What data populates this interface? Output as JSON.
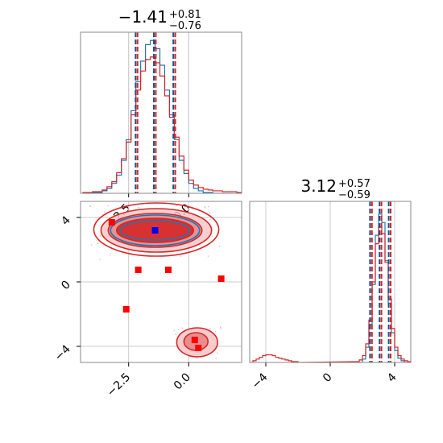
{
  "chart_data": [
    {
      "type": "histogram",
      "panel": "top-left",
      "title": {
        "value": "−1.41",
        "plus": "+0.81",
        "minus": "−0.76"
      },
      "xlim": [
        -4.5,
        2.2
      ],
      "grid": true,
      "x_ticks": [
        -2.5,
        0.0
      ],
      "quantiles": [
        -2.17,
        -1.41,
        -0.6
      ],
      "series": [
        {
          "color": "#1f77b4",
          "x": [
            -4.4,
            -4.2,
            -4.0,
            -3.8,
            -3.6,
            -3.4,
            -3.2,
            -3.0,
            -2.8,
            -2.6,
            -2.4,
            -2.2,
            -2.0,
            -1.8,
            -1.6,
            -1.4,
            -1.2,
            -1.0,
            -0.8,
            -0.6,
            -0.4,
            -0.2,
            0.0,
            0.2,
            0.4,
            0.6,
            0.8,
            1.0,
            1.2,
            1.4,
            1.6,
            1.8,
            2.0
          ],
          "y": [
            0,
            0,
            1,
            1,
            3,
            6,
            12,
            22,
            40,
            65,
            100,
            135,
            160,
            180,
            185,
            175,
            155,
            125,
            95,
            65,
            40,
            24,
            12,
            6,
            3,
            1,
            1,
            0,
            0,
            0,
            0,
            0,
            0
          ]
        },
        {
          "color": "#d62728",
          "x": [
            -4.4,
            -4.2,
            -4.0,
            -3.8,
            -3.6,
            -3.4,
            -3.2,
            -3.0,
            -2.8,
            -2.6,
            -2.4,
            -2.2,
            -2.0,
            -1.8,
            -1.6,
            -1.4,
            -1.2,
            -1.0,
            -0.8,
            -0.6,
            -0.4,
            -0.2,
            0.0,
            0.2,
            0.4,
            0.6,
            0.8,
            1.0,
            1.2,
            1.4,
            1.6,
            1.8,
            2.0
          ],
          "y": [
            1,
            1,
            2,
            2,
            4,
            8,
            14,
            25,
            42,
            62,
            95,
            125,
            148,
            162,
            165,
            158,
            142,
            118,
            92,
            68,
            45,
            28,
            16,
            10,
            7,
            5,
            4,
            3,
            3,
            2,
            2,
            2,
            1
          ]
        }
      ]
    },
    {
      "type": "scatter",
      "panel": "bottom-left",
      "xlim": [
        -4.5,
        2.2
      ],
      "ylim": [
        -5.0,
        5.0
      ],
      "grid": true,
      "x_ticks": [
        -2.5,
        0.0
      ],
      "y_ticks": [
        -4,
        0,
        4
      ],
      "markers": [
        {
          "name": "blue square",
          "color": "#0000ff",
          "x": -1.4,
          "y": 3.2
        },
        {
          "name": "red square",
          "color": "#ff0000",
          "x": -3.2,
          "y": 3.7
        },
        {
          "name": "red square",
          "color": "#ff0000",
          "x": -2.1,
          "y": 0.75
        },
        {
          "name": "red square",
          "color": "#ff0000",
          "x": -0.85,
          "y": 0.75
        },
        {
          "name": "red square",
          "color": "#ff0000",
          "x": 1.35,
          "y": 0.2
        },
        {
          "name": "red square",
          "color": "#ff0000",
          "x": -2.6,
          "y": -1.7
        },
        {
          "name": "red square",
          "color": "#ff0000",
          "x": 0.25,
          "y": -3.6
        },
        {
          "name": "red square",
          "color": "#ff0000",
          "x": 0.4,
          "y": -4.1
        }
      ],
      "contours": [
        {
          "color": "#d62728",
          "center": [
            -1.4,
            3.2
          ],
          "extent": [
            1.6,
            0.75
          ],
          "fill": "#d62728",
          "opacity": 0.9
        },
        {
          "color": "#d62728",
          "center": [
            -1.4,
            3.2
          ],
          "extent": [
            1.95,
            1.05
          ],
          "fill": "#e88a8a",
          "opacity": 0.9
        },
        {
          "color": "#d62728",
          "center": [
            -1.35,
            3.2
          ],
          "extent": [
            2.3,
            1.35
          ],
          "fill": "#f4c4c4",
          "opacity": 0.8
        },
        {
          "color": "#d62728",
          "center": [
            -1.35,
            3.25
          ],
          "extent": [
            2.6,
            1.65
          ],
          "fill": "none",
          "opacity": 1
        },
        {
          "color": "#1f77b4",
          "center": [
            -1.4,
            3.2
          ],
          "extent": [
            1.45,
            0.6
          ],
          "fill": "none",
          "opacity": 1
        },
        {
          "color": "#1f77b4",
          "center": [
            -1.4,
            3.2
          ],
          "extent": [
            1.85,
            0.95
          ],
          "fill": "none",
          "opacity": 1
        },
        {
          "color": "#d62728",
          "center": [
            0.3,
            -3.7
          ],
          "extent": [
            0.5,
            0.55
          ],
          "fill": "#e88a8a",
          "opacity": 0.95
        },
        {
          "color": "#d62728",
          "center": [
            0.35,
            -3.75
          ],
          "extent": [
            0.85,
            0.9
          ],
          "fill": "#f4c4c4",
          "opacity": 0.85
        }
      ]
    },
    {
      "type": "histogram",
      "panel": "bottom-right",
      "title": {
        "value": "3.12",
        "plus": "+0.57",
        "minus": "−0.59"
      },
      "xlim": [
        -5.0,
        5.0
      ],
      "grid": true,
      "x_ticks": [
        -4,
        0,
        4
      ],
      "quantiles": [
        2.53,
        3.12,
        3.69
      ],
      "series": [
        {
          "color": "#1f77b4",
          "x": [
            1.8,
            2.0,
            2.2,
            2.4,
            2.6,
            2.8,
            3.0,
            3.2,
            3.4,
            3.6,
            3.8,
            4.0,
            4.2,
            4.4,
            4.6
          ],
          "y": [
            0,
            4,
            18,
            45,
            92,
            150,
            175,
            165,
            120,
            70,
            35,
            14,
            5,
            2,
            0
          ]
        },
        {
          "color": "#d62728",
          "x": [
            -5.0,
            -4.8,
            -4.6,
            -4.4,
            -4.2,
            -4.0,
            -3.8,
            -3.6,
            -3.4,
            -3.2,
            -3.0,
            -2.8,
            -2.6,
            -2.4,
            -2.2,
            -2.0,
            1.6,
            1.8,
            2.0,
            2.2,
            2.4,
            2.6,
            2.8,
            3.0,
            3.2,
            3.4,
            3.6,
            3.8,
            4.0,
            4.2,
            4.4,
            4.6,
            4.8
          ],
          "y": [
            0,
            2,
            4,
            6,
            8,
            9,
            9,
            8,
            6,
            5,
            4,
            3,
            2,
            1,
            1,
            0,
            1,
            3,
            8,
            22,
            50,
            95,
            140,
            160,
            152,
            118,
            75,
            40,
            18,
            8,
            4,
            2,
            1
          ]
        }
      ]
    }
  ]
}
